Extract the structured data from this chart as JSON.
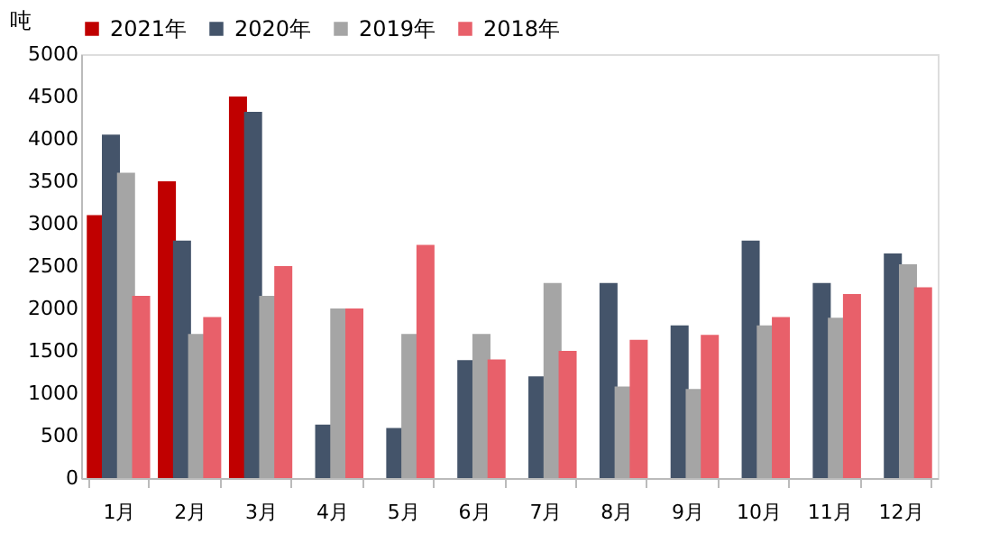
{
  "chart_data": {
    "type": "bar",
    "ylabel": "吨",
    "categories": [
      "1月",
      "2月",
      "3月",
      "4月",
      "5月",
      "6月",
      "7月",
      "8月",
      "9月",
      "10月",
      "11月",
      "12月"
    ],
    "series": [
      {
        "name": "2021年",
        "color": "#c00000",
        "values": [
          3100,
          3500,
          4500,
          null,
          null,
          null,
          null,
          null,
          null,
          null,
          null,
          null
        ]
      },
      {
        "name": "2020年",
        "color": "#44546a",
        "values": [
          4050,
          2800,
          4320,
          630,
          590,
          1390,
          1200,
          2300,
          1800,
          2800,
          2300,
          2650
        ]
      },
      {
        "name": "2019年",
        "color": "#a5a5a5",
        "values": [
          3600,
          1700,
          2150,
          2000,
          1700,
          1700,
          2300,
          1080,
          1050,
          1800,
          1890,
          2520
        ]
      },
      {
        "name": "2018年",
        "color": "#e8606a",
        "values": [
          2150,
          1900,
          2500,
          2000,
          2750,
          1400,
          1500,
          1630,
          1690,
          1900,
          2170,
          2250
        ]
      }
    ],
    "ylim": [
      0,
      5000
    ],
    "yticks": [
      0,
      500,
      1000,
      1500,
      2000,
      2500,
      3000,
      3500,
      4000,
      4500,
      5000
    ],
    "grid": false,
    "legend": "top"
  }
}
